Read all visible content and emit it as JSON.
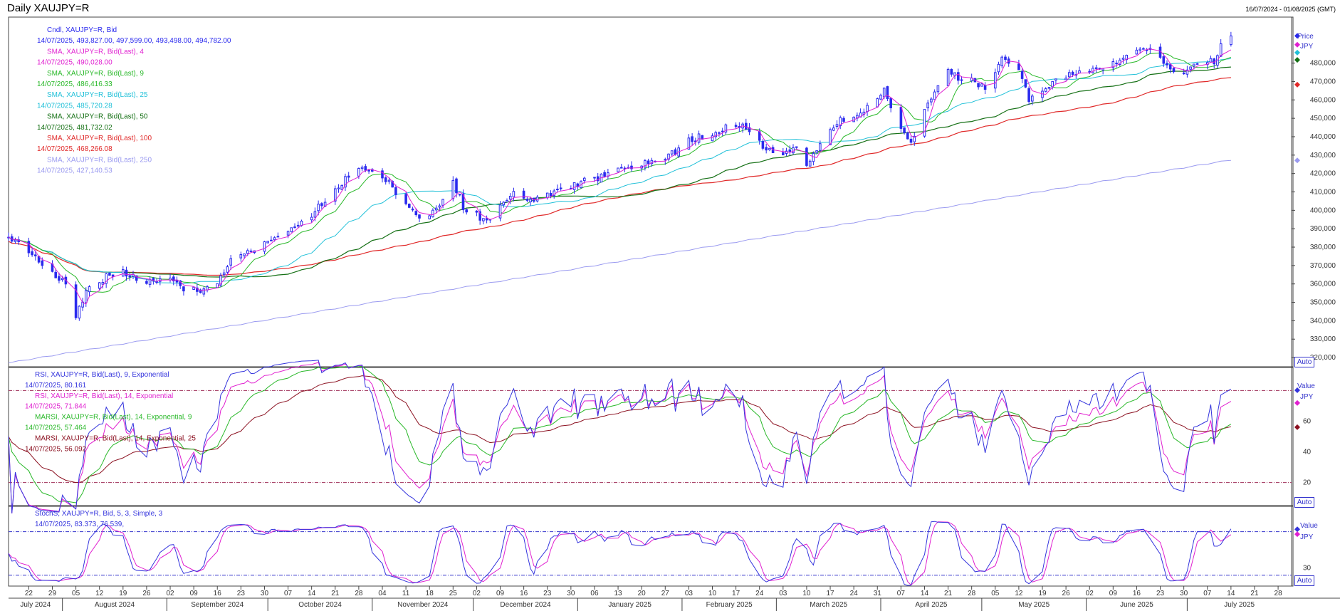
{
  "window": {
    "title": "Daily XAUJPY=R",
    "date_range": "16/07/2024 - 01/08/2025 (GMT)"
  },
  "colors": {
    "candle": "#2a2aee",
    "sma4": "#e020d0",
    "sma9": "#28b828",
    "sma25": "#20c0d8",
    "sma50": "#157015",
    "sma100": "#e02828",
    "sma250": "#9a9af0",
    "rsi9": "#3434dd",
    "rsi14": "#e020d0",
    "marsi9": "#28b828",
    "marsi25": "#8b1020",
    "stoch_k": "#3434dd",
    "stoch_d": "#e020d0",
    "guide": "#a0305a"
  },
  "price_panel": {
    "legend": [
      {
        "label": "Cndl, XAUJPY=R, Bid",
        "value": "14/07/2025, 493,827.00, 497,599.00, 493,498.00, 494,782.00",
        "color": "#2a2aee"
      },
      {
        "label": "SMA, XAUJPY=R, Bid(Last), 4",
        "value": "14/07/2025, 490,028.00",
        "color": "#e020d0"
      },
      {
        "label": "SMA, XAUJPY=R, Bid(Last), 9",
        "value": "14/07/2025, 486,416.33",
        "color": "#28b828"
      },
      {
        "label": "SMA, XAUJPY=R, Bid(Last), 25",
        "value": "14/07/2025, 485,720.28",
        "color": "#20c0d8"
      },
      {
        "label": "SMA, XAUJPY=R, Bid(Last), 50",
        "value": "14/07/2025, 481,732.02",
        "color": "#157015"
      },
      {
        "label": "SMA, XAUJPY=R, Bid(Last), 100",
        "value": "14/07/2025, 468,266.08",
        "color": "#e02828"
      },
      {
        "label": "SMA, XAUJPY=R, Bid(Last), 250",
        "value": "14/07/2025, 427,140.53",
        "color": "#9a9af0"
      }
    ],
    "right_labels": [
      "Price",
      "JPY"
    ],
    "auto_label": "Auto"
  },
  "rsi_panel": {
    "legend": [
      {
        "label": "RSI, XAUJPY=R, Bid(Last),  9, Exponential",
        "value": "14/07/2025, 80.161",
        "color": "#3434dd"
      },
      {
        "label": "RSI, XAUJPY=R, Bid(Last),  14, Exponential",
        "value": "14/07/2025, 71.844",
        "color": "#e020d0"
      },
      {
        "label": "MARSI, XAUJPY=R, Bid(Last),  14, Exponential, 9",
        "value": "14/07/2025, 57.464",
        "color": "#28b828"
      },
      {
        "label": "MARSI, XAUJPY=R, Bid(Last),  14, Exponential, 25",
        "value": "14/07/2025, 56.092",
        "color": "#8b1020"
      }
    ],
    "right_labels": [
      "Value",
      "JPY"
    ],
    "auto_label": "Auto"
  },
  "stoch_panel": {
    "legend": [
      {
        "label": "StochS, XAUJPY=R, Bid,  5, 3, Simple, 3",
        "value": "",
        "color": "#3434dd"
      },
      {
        "label": "",
        "value": "14/07/2025, 83.373, 76.539",
        "color": "#3434dd"
      }
    ],
    "value2_color": "#e020d0",
    "right_labels": [
      "Value",
      "JPY"
    ],
    "auto_label": "Auto"
  },
  "chart_data": [
    {
      "type": "line",
      "title": "Daily XAUJPY=R",
      "subtype": "candlestick with SMA overlays",
      "ylim": [
        315000,
        505000
      ],
      "y_ticks": [
        320000,
        330000,
        340000,
        350000,
        360000,
        370000,
        380000,
        390000,
        400000,
        410000,
        420000,
        430000,
        440000,
        450000,
        460000,
        470000,
        480000
      ],
      "y_tick_labels": [
        "320,000",
        "330,000",
        "340,000",
        "350,000",
        "360,000",
        "370,000",
        "380,000",
        "390,000",
        "400,000",
        "410,000",
        "420,000",
        "430,000",
        "440,000",
        "450,000",
        "460,000",
        "470,000",
        "480,000"
      ],
      "close_anchors": [
        [
          "2024-07-16",
          386000
        ],
        [
          "2024-07-19",
          383000
        ],
        [
          "2024-07-24",
          375000
        ],
        [
          "2024-07-29",
          366000
        ],
        [
          "2024-08-02",
          360000
        ],
        [
          "2024-08-05",
          342000
        ],
        [
          "2024-08-08",
          356000
        ],
        [
          "2024-08-14",
          364000
        ],
        [
          "2024-08-19",
          366000
        ],
        [
          "2024-08-26",
          362000
        ],
        [
          "2024-09-02",
          363000
        ],
        [
          "2024-09-06",
          358000
        ],
        [
          "2024-09-11",
          357000
        ],
        [
          "2024-09-16",
          361000
        ],
        [
          "2024-09-20",
          372000
        ],
        [
          "2024-09-26",
          379000
        ],
        [
          "2024-10-01",
          383000
        ],
        [
          "2024-10-07",
          389000
        ],
        [
          "2024-10-14",
          398000
        ],
        [
          "2024-10-21",
          411000
        ],
        [
          "2024-10-28",
          424000
        ],
        [
          "2024-10-31",
          422000
        ],
        [
          "2024-11-05",
          417000
        ],
        [
          "2024-11-08",
          410000
        ],
        [
          "2024-11-14",
          398000
        ],
        [
          "2024-11-18",
          397000
        ],
        [
          "2024-11-22",
          405000
        ],
        [
          "2024-11-25",
          416000
        ],
        [
          "2024-11-28",
          402000
        ],
        [
          "2024-12-03",
          396000
        ],
        [
          "2024-12-06",
          395000
        ],
        [
          "2024-12-10",
          405000
        ],
        [
          "2024-12-13",
          409000
        ],
        [
          "2024-12-18",
          406000
        ],
        [
          "2024-12-23",
          409000
        ],
        [
          "2024-12-31",
          414000
        ],
        [
          "2025-01-07",
          418000
        ],
        [
          "2025-01-13",
          423000
        ],
        [
          "2025-01-17",
          424000
        ],
        [
          "2025-01-24",
          427000
        ],
        [
          "2025-01-30",
          432000
        ],
        [
          "2025-02-04",
          439000
        ],
        [
          "2025-02-10",
          441000
        ],
        [
          "2025-02-14",
          446000
        ],
        [
          "2025-02-20",
          445000
        ],
        [
          "2025-02-26",
          433000
        ],
        [
          "2025-03-03",
          430000
        ],
        [
          "2025-03-06",
          436000
        ],
        [
          "2025-03-10",
          426000
        ],
        [
          "2025-03-14",
          436000
        ],
        [
          "2025-03-19",
          448000
        ],
        [
          "2025-03-25",
          451000
        ],
        [
          "2025-04-02",
          465000
        ],
        [
          "2025-04-07",
          445000
        ],
        [
          "2025-04-10",
          437000
        ],
        [
          "2025-04-14",
          455000
        ],
        [
          "2025-04-21",
          478000
        ],
        [
          "2025-04-23",
          473000
        ],
        [
          "2025-04-28",
          470000
        ],
        [
          "2025-05-02",
          467000
        ],
        [
          "2025-05-07",
          483000
        ],
        [
          "2025-05-12",
          476000
        ],
        [
          "2025-05-15",
          461000
        ],
        [
          "2025-05-20",
          466000
        ],
        [
          "2025-05-23",
          472000
        ],
        [
          "2025-05-28",
          475000
        ],
        [
          "2025-06-02",
          476000
        ],
        [
          "2025-06-06",
          479000
        ],
        [
          "2025-06-12",
          483000
        ],
        [
          "2025-06-16",
          488000
        ],
        [
          "2025-06-20",
          487000
        ],
        [
          "2025-06-23",
          484000
        ],
        [
          "2025-06-25",
          477000
        ],
        [
          "2025-06-30",
          474000
        ],
        [
          "2025-07-03",
          479000
        ],
        [
          "2025-07-09",
          481000
        ],
        [
          "2025-07-11",
          490000
        ],
        [
          "2025-07-14",
          494782
        ]
      ],
      "last_values": {
        "sma4": 490028.0,
        "sma9": 486416.33,
        "sma25": 485720.28,
        "sma50": 481732.02,
        "sma100": 468266.08,
        "sma250": 427140.53
      },
      "sma250_start": 317000
    },
    {
      "type": "line",
      "title": "RSI",
      "ylim": [
        5,
        95
      ],
      "y_ticks": [
        20,
        40,
        60
      ],
      "y_tick_labels": [
        "20",
        "40",
        "60"
      ],
      "guides": [
        20,
        80
      ],
      "last_values": {
        "rsi9": 80.161,
        "rsi14": 71.844,
        "marsi9": 57.464,
        "marsi25": 56.092
      }
    },
    {
      "type": "line",
      "title": "StochS",
      "ylim": [
        5,
        115
      ],
      "y_ticks": [
        30
      ],
      "y_tick_labels": [
        "30"
      ],
      "guides": [
        20,
        80
      ],
      "last_values": {
        "k": 83.373,
        "d": 76.539
      }
    }
  ],
  "x_axis": {
    "start": "2024-07-16",
    "end": "2025-08-01",
    "day_ticks": [
      [
        "2024-07-22",
        "22"
      ],
      [
        "2024-07-29",
        "29"
      ],
      [
        "2024-08-05",
        "05"
      ],
      [
        "2024-08-12",
        "12"
      ],
      [
        "2024-08-19",
        "19"
      ],
      [
        "2024-08-26",
        "26"
      ],
      [
        "2024-09-02",
        "02"
      ],
      [
        "2024-09-09",
        "09"
      ],
      [
        "2024-09-16",
        "16"
      ],
      [
        "2024-09-23",
        "23"
      ],
      [
        "2024-09-30",
        "30"
      ],
      [
        "2024-10-07",
        "07"
      ],
      [
        "2024-10-14",
        "14"
      ],
      [
        "2024-10-21",
        "21"
      ],
      [
        "2024-10-28",
        "28"
      ],
      [
        "2024-11-04",
        "04"
      ],
      [
        "2024-11-11",
        "11"
      ],
      [
        "2024-11-18",
        "18"
      ],
      [
        "2024-11-25",
        "25"
      ],
      [
        "2024-12-02",
        "02"
      ],
      [
        "2024-12-09",
        "09"
      ],
      [
        "2024-12-16",
        "16"
      ],
      [
        "2024-12-23",
        "23"
      ],
      [
        "2024-12-30",
        "30"
      ],
      [
        "2025-01-06",
        "06"
      ],
      [
        "2025-01-13",
        "13"
      ],
      [
        "2025-01-20",
        "20"
      ],
      [
        "2025-01-27",
        "27"
      ],
      [
        "2025-02-03",
        "03"
      ],
      [
        "2025-02-10",
        "10"
      ],
      [
        "2025-02-17",
        "17"
      ],
      [
        "2025-02-24",
        "24"
      ],
      [
        "2025-03-03",
        "03"
      ],
      [
        "2025-03-10",
        "10"
      ],
      [
        "2025-03-17",
        "17"
      ],
      [
        "2025-03-24",
        "24"
      ],
      [
        "2025-03-31",
        "31"
      ],
      [
        "2025-04-07",
        "07"
      ],
      [
        "2025-04-14",
        "14"
      ],
      [
        "2025-04-21",
        "21"
      ],
      [
        "2025-04-28",
        "28"
      ],
      [
        "2025-05-05",
        "05"
      ],
      [
        "2025-05-12",
        "12"
      ],
      [
        "2025-05-19",
        "19"
      ],
      [
        "2025-05-26",
        "26"
      ],
      [
        "2025-06-02",
        "02"
      ],
      [
        "2025-06-09",
        "09"
      ],
      [
        "2025-06-16",
        "16"
      ],
      [
        "2025-06-23",
        "23"
      ],
      [
        "2025-06-30",
        "30"
      ],
      [
        "2025-07-07",
        "07"
      ],
      [
        "2025-07-14",
        "14"
      ],
      [
        "2025-07-21",
        "21"
      ],
      [
        "2025-07-28",
        "28"
      ]
    ],
    "months": [
      [
        "2024-07-16",
        "July 2024"
      ],
      [
        "2024-08-01",
        "August 2024"
      ],
      [
        "2024-09-01",
        "September 2024"
      ],
      [
        "2024-10-01",
        "October 2024"
      ],
      [
        "2024-11-01",
        "November 2024"
      ],
      [
        "2024-12-01",
        "December 2024"
      ],
      [
        "2025-01-01",
        "January 2025"
      ],
      [
        "2025-02-01",
        "February 2025"
      ],
      [
        "2025-03-01",
        "March 2025"
      ],
      [
        "2025-04-01",
        "April 2025"
      ],
      [
        "2025-05-01",
        "May 2025"
      ],
      [
        "2025-06-01",
        "June 2025"
      ],
      [
        "2025-07-01",
        "July 2025"
      ]
    ]
  }
}
